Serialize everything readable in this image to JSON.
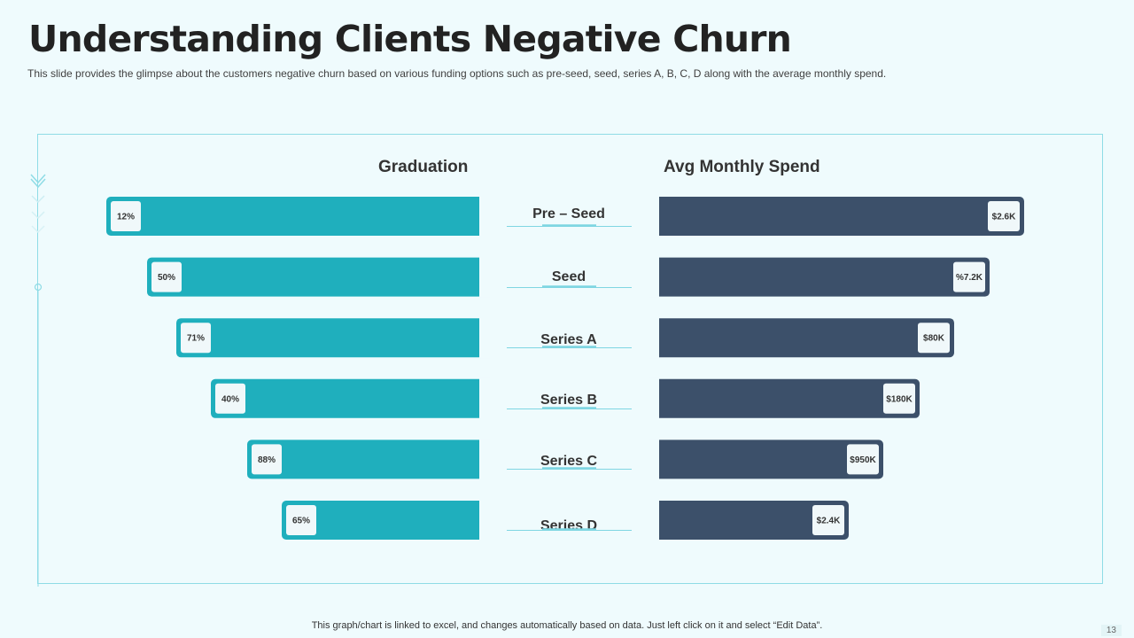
{
  "slide": {
    "title": "Understanding Clients Negative Churn",
    "subtitle": "This slide provides  the glimpse about the customers negative churn based on various  funding options such as pre-seed,  seed, series A, B, C, D along with the average  monthly spend.",
    "footer": "This graph/chart is linked to excel,  and changes automatically based on data. Just left click on it and select “Edit Data”.",
    "page_number": "13"
  },
  "colors": {
    "graduation_bar": "#1fafbd",
    "spend_bar": "#3c506a",
    "label_box": "#f0f8fa",
    "stage_underline": "#7fd6e2",
    "frame": "#8fdce6"
  },
  "chart_data": {
    "type": "bar",
    "categories": [
      "Pre – Seed",
      "Seed",
      "Series A",
      "Series B",
      "Series C",
      "Series D"
    ],
    "series": [
      {
        "name": "Graduation",
        "values": [
          12,
          50,
          71,
          40,
          88,
          65
        ],
        "data_labels": [
          "12%",
          "50%",
          "71%",
          "40%",
          "88%",
          "65%"
        ]
      },
      {
        "name": "Avg Monthly Spend",
        "values": [
          2.6,
          7.2,
          80,
          180,
          950,
          2.4
        ],
        "data_labels": [
          "$2.6K",
          "%7.2K",
          "$80K",
          "$180K",
          "$950K",
          "$2.4K"
        ]
      }
    ],
    "legend": "none",
    "grid": false
  }
}
